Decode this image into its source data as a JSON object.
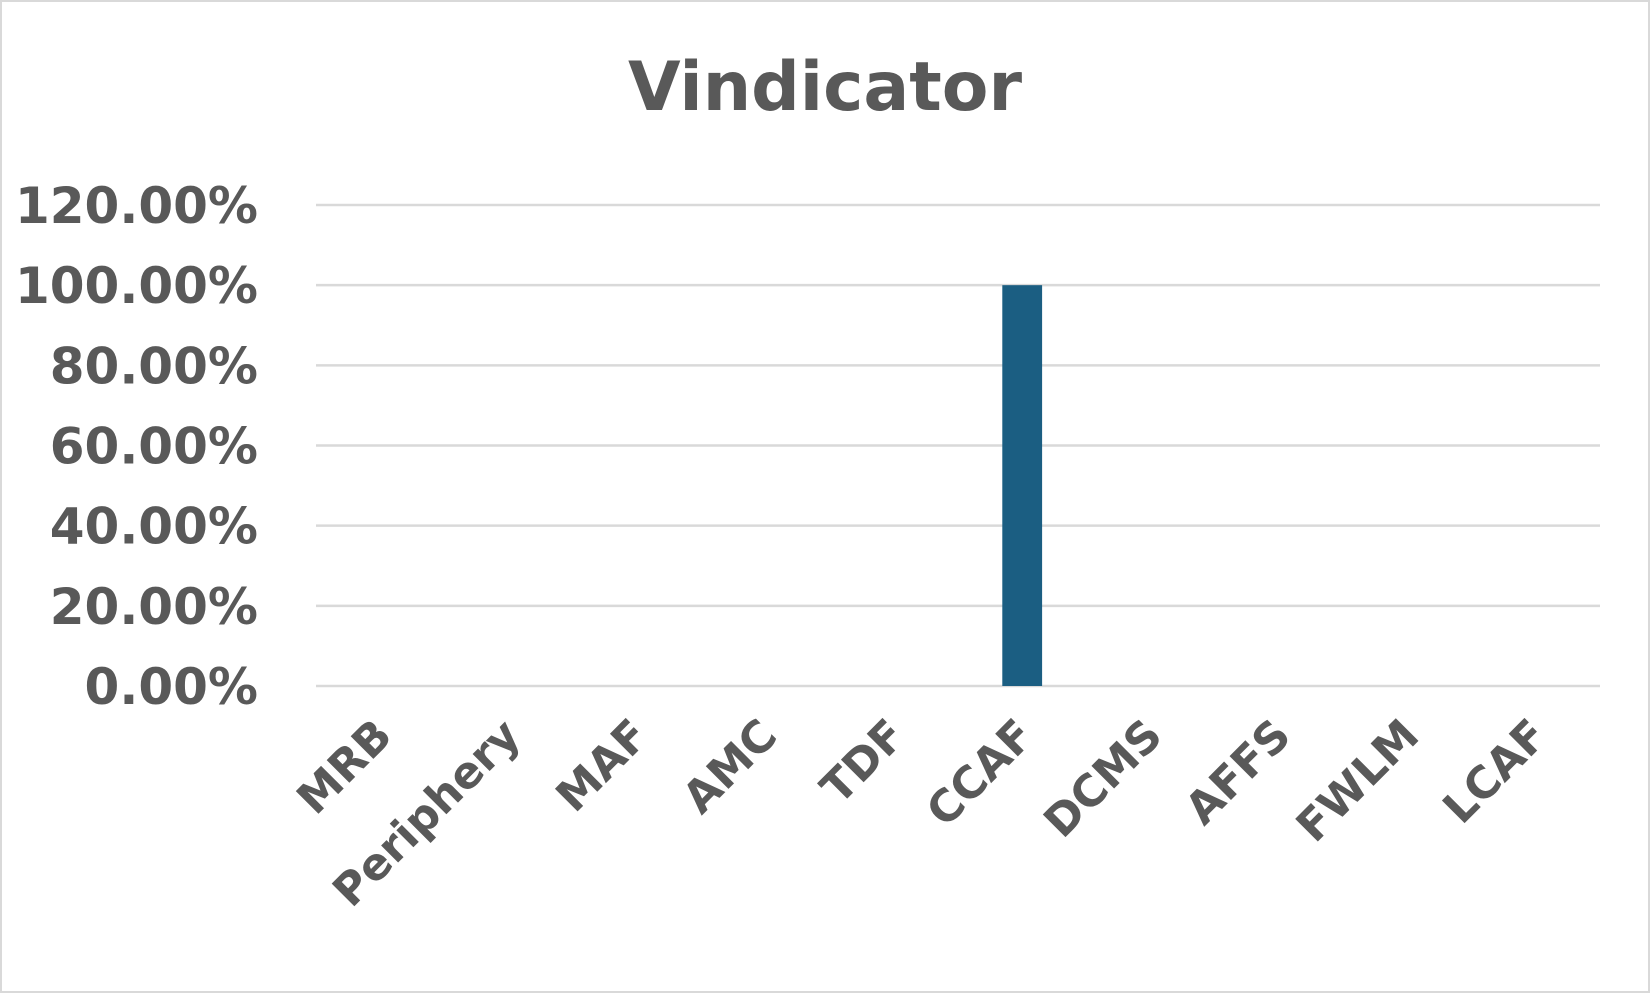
{
  "chart_data": {
    "type": "bar",
    "title": "Vindicator",
    "xlabel": "",
    "ylabel": "",
    "categories": [
      "MRB",
      "Periphery",
      "MAF",
      "AMC",
      "TDF",
      "CCAF",
      "DCMS",
      "AFFS",
      "FWLM",
      "LCAF"
    ],
    "values": [
      0,
      0,
      0,
      0,
      0,
      1.0,
      0,
      0,
      0,
      0
    ],
    "ylim": [
      0,
      1.2
    ],
    "yticks": [
      0,
      0.2,
      0.4,
      0.6,
      0.8,
      1.0,
      1.2
    ],
    "ytick_labels": [
      "0.00%",
      "20.00%",
      "40.00%",
      "60.00%",
      "80.00%",
      "100.00%",
      "120.00%"
    ],
    "grid": true,
    "legend": "none",
    "bar_color": "#1b5e82"
  }
}
